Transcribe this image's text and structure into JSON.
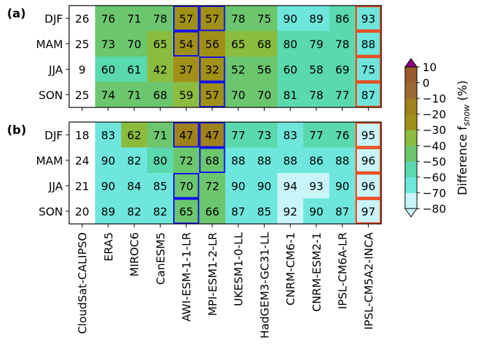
{
  "colors": {
    "bins": [
      "#c8f4fa",
      "#6ee6dc",
      "#5ad8ae",
      "#6cc66e",
      "#8bbc3f",
      "#a09018",
      "#a0821c",
      "#9a6a30",
      "#9a5a2c",
      "#9a4a3c",
      "#8c0080"
    ],
    "cell_border_blue": "#1010ee",
    "cell_border_orange": "#ee4414"
  },
  "chart_data": {
    "type": "heatmap",
    "rows": [
      "DJF",
      "MAM",
      "JJA",
      "SON"
    ],
    "columns": [
      "CloudSat-CALIPSO",
      "ERA5",
      "MIROC6",
      "CanESM5",
      "AWI-ESM-1-1-LR",
      "MPI-ESM1-2-LR",
      "UKESM1-0-LL",
      "HadGEM3-GC31-LL",
      "CNRM-CM6-1",
      "CNRM-ESM2-1",
      "IPSL-CM6A-LR",
      "IPSL-CM5A2-INCA"
    ],
    "reference_column": "CloudSat-CALIPSO",
    "panels": [
      {
        "label": "(a)",
        "values": [
          [
            26,
            76,
            71,
            78,
            57,
            57,
            78,
            75,
            90,
            89,
            86,
            93
          ],
          [
            25,
            73,
            70,
            65,
            54,
            56,
            65,
            68,
            80,
            79,
            78,
            88
          ],
          [
            9,
            60,
            61,
            42,
            37,
            32,
            52,
            56,
            60,
            58,
            69,
            75
          ],
          [
            25,
            74,
            71,
            68,
            59,
            57,
            70,
            70,
            81,
            78,
            77,
            87
          ]
        ],
        "colors": [
          [
            "ref",
            "-50",
            "-50",
            "-50",
            "-30",
            "-30",
            "-50",
            "-50",
            "-70",
            "-70",
            "-60",
            "-70"
          ],
          [
            "ref",
            "-50",
            "-50",
            "-40",
            "-30",
            "-30",
            "-40",
            "-40",
            "-60",
            "-60",
            "-60",
            "-70"
          ],
          [
            "ref",
            "-60",
            "-60",
            "-40",
            "-30",
            "-30",
            "-50",
            "-50",
            "-60",
            "-60",
            "-60",
            "-70"
          ],
          [
            "ref",
            "-50",
            "-50",
            "-50",
            "-40",
            "-30",
            "-50",
            "-50",
            "-60",
            "-60",
            "-60",
            "-70"
          ]
        ],
        "blue_boxes": [
          [
            0,
            4
          ],
          [
            0,
            5
          ],
          [
            1,
            4
          ],
          [
            2,
            5
          ],
          [
            3,
            5
          ]
        ],
        "orange_boxes": [
          [
            0,
            11
          ],
          [
            1,
            11
          ],
          [
            2,
            11
          ],
          [
            3,
            11
          ]
        ]
      },
      {
        "label": "(b)",
        "values": [
          [
            18,
            83,
            62,
            71,
            47,
            47,
            77,
            73,
            83,
            77,
            76,
            95
          ],
          [
            24,
            90,
            82,
            80,
            72,
            68,
            88,
            88,
            88,
            86,
            88,
            96
          ],
          [
            21,
            90,
            84,
            85,
            70,
            72,
            90,
            90,
            94,
            93,
            90,
            96
          ],
          [
            20,
            89,
            82,
            82,
            65,
            66,
            87,
            85,
            92,
            90,
            87,
            97
          ]
        ],
        "colors": [
          [
            "ref",
            "-70",
            "-40",
            "-50",
            "-20",
            "-20",
            "-60",
            "-60",
            "-70",
            "-60",
            "-60",
            "-80"
          ],
          [
            "ref",
            "-70",
            "-70",
            "-60",
            "-50",
            "-50",
            "-70",
            "-70",
            "-70",
            "-70",
            "-70",
            "-80"
          ],
          [
            "ref",
            "-70",
            "-70",
            "-70",
            "-50",
            "-50",
            "-70",
            "-70",
            "-80",
            "-80",
            "-70",
            "-80"
          ],
          [
            "ref",
            "-70",
            "-70",
            "-70",
            "-50",
            "-50",
            "-70",
            "-70",
            "-80",
            "-70",
            "-70",
            "-80"
          ]
        ],
        "blue_boxes": [
          [
            0,
            4
          ],
          [
            0,
            5
          ],
          [
            1,
            5
          ],
          [
            2,
            4
          ],
          [
            3,
            4
          ]
        ],
        "orange_boxes": [
          [
            0,
            11
          ],
          [
            1,
            11
          ],
          [
            2,
            11
          ],
          [
            3,
            11
          ]
        ]
      }
    ],
    "colorbar": {
      "ticks": [
        "10",
        "0",
        "−10",
        "−20",
        "−30",
        "−40",
        "−50",
        "−60",
        "−70",
        "−80"
      ],
      "label_prefix": "Difference f",
      "label_sub": "snow",
      "label_suffix": " (%)",
      "range": [
        -80,
        10
      ],
      "extend": "both"
    }
  }
}
